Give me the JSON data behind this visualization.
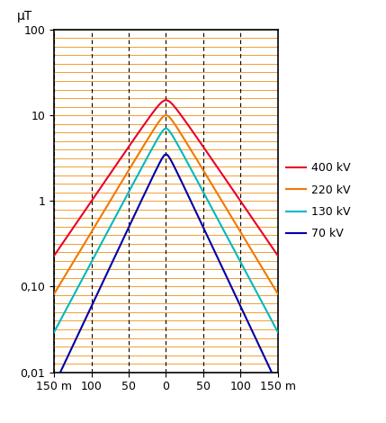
{
  "ylabel": "μT",
  "xlim": [
    -150,
    150
  ],
  "ylim_log": [
    0.01,
    100
  ],
  "xticks": [
    -150,
    -100,
    -50,
    0,
    50,
    100,
    150
  ],
  "xticklabels": [
    "150 m",
    "100",
    "50",
    "0",
    "50",
    "100",
    "150 m"
  ],
  "yticks": [
    0.01,
    0.1,
    1,
    10,
    100
  ],
  "yticklabels": [
    "0,01",
    "0,10",
    "1",
    "10",
    "100"
  ],
  "curves": [
    {
      "label": "400 kV",
      "color": "#e8002a",
      "peak": 15.0,
      "k": 34.0,
      "r0": 8.0
    },
    {
      "label": "220 kV",
      "color": "#f07800",
      "peak": 10.0,
      "k": 30.0,
      "r0": 6.0
    },
    {
      "label": "130 kV",
      "color": "#00b8c0",
      "peak": 7.0,
      "k": 26.5,
      "r0": 5.0
    },
    {
      "label": "70 kV",
      "color": "#0000aa",
      "peak": 3.5,
      "k": 23.5,
      "r0": 4.0
    }
  ],
  "hgrid_color": "#f0a030",
  "vgrid_color": "#000000",
  "background_color": "#ffffff",
  "border_color": "#000000"
}
